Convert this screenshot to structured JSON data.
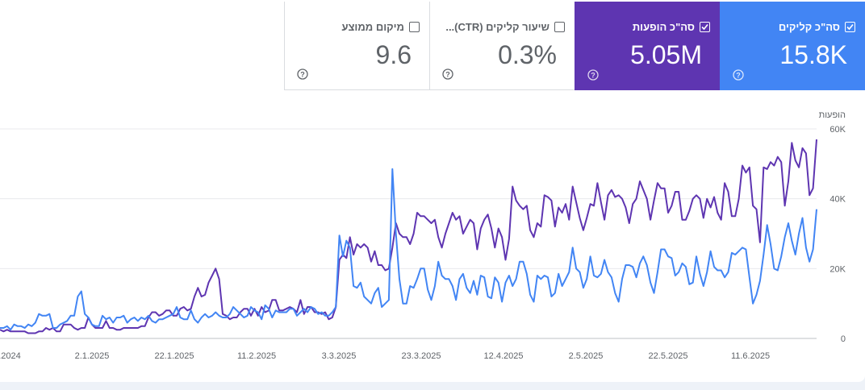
{
  "metrics": [
    {
      "id": "avg-position",
      "label": "מיקום ממוצע",
      "value": "9.6",
      "checked": false
    },
    {
      "id": "ctr",
      "label": "שיעור קליקים (CTR)...",
      "value": "0.3%",
      "checked": false
    },
    {
      "id": "impressions",
      "label": "סה\"כ הופעות",
      "value": "5.05M",
      "checked": true
    },
    {
      "id": "clicks",
      "label": "סה\"כ קליקים",
      "value": "15.8K",
      "checked": true
    }
  ],
  "colors": {
    "clicks": "#4285f4",
    "impressions": "#5e35b1",
    "grid": "#e8eaed",
    "text": "#5f6368"
  },
  "chart_data": {
    "type": "line",
    "axis_title": "הופעות",
    "y_ticks": [
      "0",
      "20K",
      "40K",
      "60K"
    ],
    "y_tick_values": [
      0,
      20000,
      40000,
      60000
    ],
    "ylim": [
      0,
      60000
    ],
    "x_labels": [
      ".2024",
      "2.1.2025",
      "22.1.2025",
      "11.2.2025",
      "3.3.2025",
      "23.3.2025",
      "12.4.2025",
      "2.5.2025",
      "22.5.2025",
      "11.6.2025"
    ],
    "series": [
      {
        "key": "impressions",
        "values": [
          2500,
          2000,
          2500,
          2000,
          2000,
          2000,
          2000,
          2000,
          1500,
          1500,
          1500,
          2000,
          2000,
          3000,
          2500,
          3000,
          2000,
          2000,
          4000,
          4000,
          4000,
          3000,
          2500,
          3000,
          3000,
          6000,
          4000,
          3000,
          3000,
          3000,
          5000,
          3000,
          3000,
          2500,
          2500,
          3000,
          3000,
          3000,
          3000,
          3000,
          3500,
          3500,
          6000,
          7500,
          7500,
          6500,
          7000,
          8000,
          8000,
          6500,
          6500,
          8500,
          9000,
          8000,
          8500,
          12000,
          14500,
          12000,
          12500,
          16000,
          18000,
          20000,
          17000,
          7000,
          6500,
          5500,
          6000,
          6000,
          7500,
          8500,
          8500,
          6500,
          8500,
          6500,
          9000,
          7500,
          8000,
          11000,
          11000,
          8000,
          8000,
          8500,
          9000,
          8500,
          7500,
          11000,
          7000,
          9000,
          9000,
          7500,
          7500,
          7000,
          7500,
          5500,
          6000,
          9000,
          22500,
          24000,
          23000,
          29000,
          24000,
          27000,
          26000,
          27000,
          26000,
          22000,
          25000,
          21000,
          21000,
          19500,
          20000,
          26000,
          33000,
          30000,
          29000,
          29000,
          27000,
          30000,
          36000,
          35000,
          35000,
          34000,
          33000,
          34000,
          29000,
          26000,
          30000,
          33000,
          36000,
          34000,
          35000,
          30000,
          32000,
          34000,
          33000,
          25500,
          31500,
          34000,
          35500,
          31500,
          26000,
          31500,
          29000,
          22500,
          28500,
          43500,
          39500,
          38000,
          37000,
          38000,
          31000,
          29000,
          33000,
          32000,
          41000,
          40500,
          39500,
          32000,
          37500,
          36000,
          38500,
          34000,
          43500,
          39000,
          34500,
          31000,
          34500,
          38500,
          38000,
          44500,
          39000,
          34000,
          41000,
          42500,
          40500,
          41000,
          40000,
          37500,
          33000,
          38500,
          40000,
          45000,
          42500,
          40000,
          34000,
          39500,
          44500,
          43000,
          43000,
          36000,
          38000,
          42000,
          42000,
          34000,
          34000,
          36500,
          40000,
          41000,
          40000,
          34500,
          40000,
          37500,
          40500,
          36000,
          34000,
          44500,
          42000,
          35000,
          35000,
          40000,
          49500,
          47500,
          49000,
          38000,
          37000,
          27500,
          49000,
          48500,
          50500,
          49500,
          52000,
          50500,
          38000,
          45000,
          56000,
          51000,
          49000,
          54500,
          53000,
          41000,
          43000,
          57000
        ]
      },
      {
        "key": "clicks",
        "values": [
          3000,
          3000,
          3500,
          2500,
          4000,
          3500,
          3500,
          3000,
          4000,
          3500,
          4500,
          7000,
          6500,
          6500,
          7000,
          3000,
          3000,
          4000,
          4500,
          5000,
          6500,
          6500,
          12000,
          13500,
          7000,
          6000,
          4000,
          3500,
          3500,
          6500,
          5500,
          6000,
          4500,
          6000,
          6000,
          6500,
          4500,
          5500,
          6000,
          5000,
          6000,
          5500,
          6500,
          5000,
          4500,
          5500,
          5500,
          6000,
          6500,
          7000,
          9000,
          6000,
          5500,
          5500,
          8000,
          5500,
          4500,
          6000,
          7000,
          6000,
          6500,
          7500,
          6500,
          6000,
          6000,
          7000,
          9000,
          8000,
          7000,
          6000,
          6500,
          9000,
          8000,
          7500,
          5500,
          9500,
          8500,
          6000,
          8000,
          7500,
          7500,
          7500,
          8500,
          8500,
          6500,
          7500,
          8500,
          7500,
          9000,
          8500,
          7000,
          7500,
          6500,
          6500,
          7500,
          9000,
          29500,
          23500,
          28000,
          26000,
          15000,
          14500,
          16000,
          12000,
          11000,
          10000,
          13000,
          14500,
          9000,
          10000,
          11000,
          48500,
          30000,
          17000,
          10000,
          10000,
          15000,
          14500,
          17000,
          20000,
          20000,
          14000,
          11000,
          15000,
          22000,
          18000,
          17000,
          17000,
          15000,
          11000,
          17000,
          18500,
          14500,
          13000,
          16500,
          12500,
          18000,
          17500,
          12000,
          11500,
          17500,
          16000,
          10500,
          16000,
          18000,
          15000,
          17000,
          22000,
          22000,
          18500,
          12500,
          10500,
          18000,
          17000,
          18000,
          17500,
          12000,
          13000,
          18500,
          15000,
          17000,
          19000,
          26000,
          20000,
          19000,
          14500,
          17000,
          23500,
          18000,
          17500,
          18500,
          22500,
          19000,
          17500,
          13000,
          10500,
          17000,
          21000,
          21000,
          20500,
          17500,
          21500,
          23500,
          21000,
          16000,
          13000,
          19000,
          25500,
          25500,
          23500,
          23000,
          18000,
          19000,
          21500,
          20500,
          15500,
          16000,
          23500,
          18500,
          15000,
          19000,
          25000,
          20500,
          19500,
          19500,
          17500,
          19000,
          24500,
          24000,
          25000,
          26000,
          25500,
          17500,
          10000,
          12500,
          16500,
          24000,
          32500,
          27000,
          20000,
          19500,
          23500,
          29000,
          33000,
          28000,
          24000,
          30000,
          34500,
          26000,
          22000,
          25500,
          37000
        ]
      }
    ]
  }
}
